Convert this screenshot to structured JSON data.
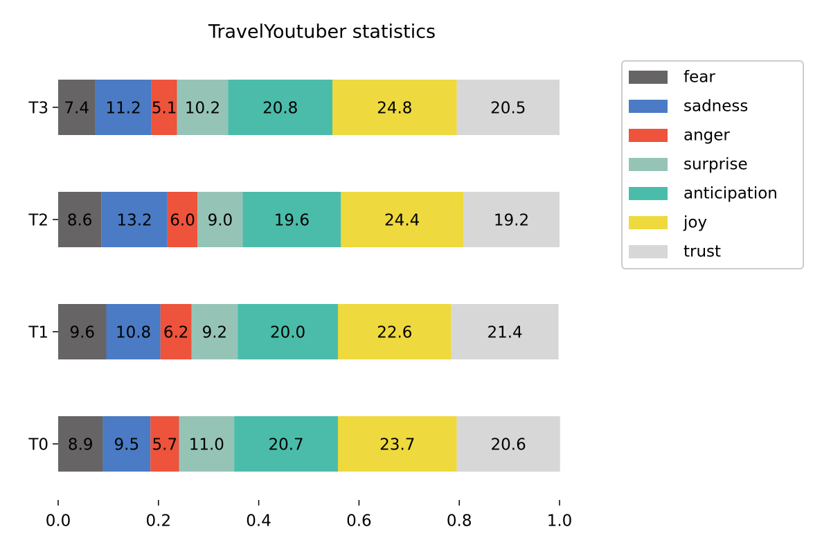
{
  "chart_data": {
    "type": "stacked-barh",
    "title": "TravelYoutuber statistics",
    "categories": [
      "T0",
      "T1",
      "T2",
      "T3"
    ],
    "series": [
      {
        "name": "fear",
        "color": "#666464",
        "values": [
          0.089,
          0.096,
          0.086,
          0.074
        ],
        "value_labels": [
          "8.9",
          "9.6",
          "8.6",
          "7.4"
        ]
      },
      {
        "name": "sadness",
        "color": "#4a7bc4",
        "values": [
          0.095,
          0.108,
          0.132,
          0.112
        ],
        "value_labels": [
          "9.5",
          "10.8",
          "13.2",
          "11.2"
        ]
      },
      {
        "name": "anger",
        "color": "#ee533b",
        "values": [
          0.057,
          0.062,
          0.06,
          0.051
        ],
        "value_labels": [
          "5.7",
          "6.2",
          "6.0",
          "5.1"
        ]
      },
      {
        "name": "surprise",
        "color": "#95c4b7",
        "values": [
          0.11,
          0.092,
          0.09,
          0.102
        ],
        "value_labels": [
          "11.0",
          "9.2",
          "9.0",
          "10.2"
        ]
      },
      {
        "name": "anticipation",
        "color": "#4bbcaa",
        "values": [
          0.207,
          0.2,
          0.196,
          0.208
        ],
        "value_labels": [
          "20.7",
          "20.0",
          "19.6",
          "20.8"
        ]
      },
      {
        "name": "joy",
        "color": "#eed93f",
        "values": [
          0.237,
          0.226,
          0.244,
          0.248
        ],
        "value_labels": [
          "23.7",
          "22.6",
          "24.4",
          "24.8"
        ]
      },
      {
        "name": "trust",
        "color": "#d7d7d7",
        "values": [
          0.206,
          0.214,
          0.192,
          0.205
        ],
        "value_labels": [
          "20.6",
          "21.4",
          "19.2",
          "20.5"
        ]
      }
    ],
    "xlim": [
      0,
      1
    ],
    "xticks": [
      {
        "value": 0,
        "label": "0.0"
      },
      0.2,
      0.4,
      0.6,
      0.8,
      {
        "value": 1,
        "label": "1.0"
      }
    ],
    "legend": "upper-right-outside"
  }
}
